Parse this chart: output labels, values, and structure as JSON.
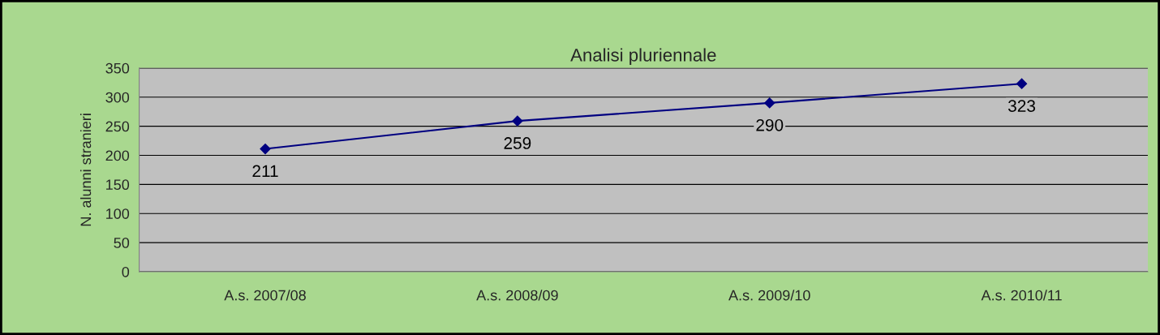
{
  "chart_data": {
    "type": "line",
    "title": "Analisi pluriennale",
    "ylabel": "N. alunni stranieri",
    "categories": [
      "A.s. 2007/08",
      "A.s. 2008/09",
      "A.s. 2009/10",
      "A.s. 2010/11"
    ],
    "series": [
      {
        "color": "#000080",
        "values": [
          211,
          259,
          290,
          323
        ]
      }
    ],
    "ylim": [
      0,
      350
    ],
    "yticks": [
      0,
      50,
      100,
      150,
      200,
      250,
      300,
      350
    ],
    "grid": "y",
    "marker": "diamond",
    "line_style": "solid",
    "data_labels": true,
    "legend": false
  }
}
